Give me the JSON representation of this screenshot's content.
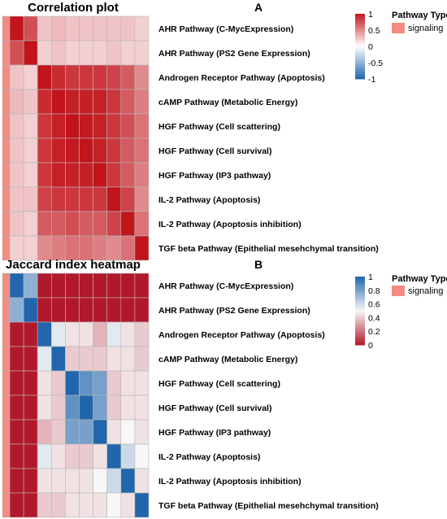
{
  "colors": {
    "pathway_type_signaling": "#F28B82",
    "cell_border": "#B8B8B8",
    "corr_scale": [
      "#2166AC",
      "#FFFFFF",
      "#C2141B"
    ],
    "jaccard_scale": [
      "#B2182B",
      "#F7F7F7",
      "#2166AC"
    ]
  },
  "chart_data": [
    {
      "type": "heatmap",
      "title": "Correlation plot",
      "panel_label": "A",
      "rows": [
        "AHR Pathway (C-MycExpression)",
        "AHR Pathway (PS2 Gene Expression)",
        "Androgen Receptor Pathway (Apoptosis)",
        "cAMP Pathway (Metabolic Energy)",
        "HGF Pathway (Cell scattering)",
        "HGF Pathway (Cell survival)",
        "HGF Pathway (IP3 pathway)",
        "IL-2 Pathway (Apoptosis)",
        "IL-2 Pathway (Apoptosis inhibition)",
        "TGF beta Pathway (Epithelial mesehchymal transition)"
      ],
      "values": [
        [
          1.0,
          0.75,
          0.25,
          0.3,
          0.25,
          0.25,
          0.25,
          0.25,
          0.25,
          0.2
        ],
        [
          0.75,
          1.0,
          0.2,
          0.25,
          0.2,
          0.2,
          0.2,
          0.25,
          0.2,
          0.2
        ],
        [
          0.25,
          0.2,
          1.0,
          0.9,
          0.85,
          0.85,
          0.85,
          0.8,
          0.7,
          0.5
        ],
        [
          0.3,
          0.25,
          0.9,
          1.0,
          0.95,
          0.95,
          0.95,
          0.85,
          0.7,
          0.55
        ],
        [
          0.25,
          0.2,
          0.85,
          0.95,
          1.0,
          0.98,
          0.95,
          0.85,
          0.75,
          0.6
        ],
        [
          0.25,
          0.2,
          0.85,
          0.95,
          0.98,
          1.0,
          0.95,
          0.85,
          0.7,
          0.6
        ],
        [
          0.25,
          0.2,
          0.85,
          0.95,
          0.95,
          0.95,
          1.0,
          0.85,
          0.7,
          0.55
        ],
        [
          0.25,
          0.25,
          0.8,
          0.85,
          0.85,
          0.85,
          0.85,
          1.0,
          0.8,
          0.5
        ],
        [
          0.25,
          0.2,
          0.7,
          0.7,
          0.75,
          0.7,
          0.7,
          0.8,
          1.0,
          0.6
        ],
        [
          0.2,
          0.2,
          0.5,
          0.55,
          0.6,
          0.6,
          0.55,
          0.5,
          0.6,
          1.0
        ]
      ],
      "annotation": {
        "title": "Pathway Type",
        "legend_item": "signaling",
        "row_values": [
          "signaling",
          "signaling",
          "signaling",
          "signaling",
          "signaling",
          "signaling",
          "signaling",
          "signaling",
          "signaling",
          "signaling"
        ]
      },
      "colorbar": {
        "range": [
          -1,
          1
        ],
        "ticks": [
          "1",
          "0.5",
          "0",
          "-0.5",
          "-1"
        ],
        "tick_values": [
          1,
          0.5,
          0,
          -0.5,
          -1
        ]
      }
    },
    {
      "type": "heatmap",
      "title": "Jaccard index heatmap",
      "panel_label": "B",
      "rows": [
        "AHR Pathway (C-MycExpression)",
        "AHR Pathway (PS2 Gene Expression)",
        "Androgen Receptor Pathway (Apoptosis)",
        "cAMP Pathway (Metabolic Energy)",
        "HGF Pathway (Cell scattering)",
        "HGF Pathway (Cell survival)",
        "HGF Pathway (IP3 pathway)",
        "IL-2 Pathway (Apoptosis)",
        "IL-2 Pathway (Apoptosis inhibition)",
        "TGF beta Pathway (Epithelial mesehchymal transition)"
      ],
      "values": [
        [
          1.0,
          0.75,
          0.0,
          0.0,
          0.0,
          0.0,
          0.0,
          0.0,
          0.0,
          0.0
        ],
        [
          0.75,
          1.0,
          0.0,
          0.0,
          0.0,
          0.0,
          0.0,
          0.0,
          0.0,
          0.0
        ],
        [
          0.0,
          0.0,
          1.0,
          0.55,
          0.45,
          0.45,
          0.35,
          0.55,
          0.45,
          0.4
        ],
        [
          0.0,
          0.0,
          0.55,
          1.0,
          0.4,
          0.4,
          0.4,
          0.45,
          0.45,
          0.4
        ],
        [
          0.0,
          0.0,
          0.45,
          0.4,
          1.0,
          0.85,
          0.8,
          0.4,
          0.45,
          0.45
        ],
        [
          0.0,
          0.0,
          0.45,
          0.4,
          0.85,
          1.0,
          0.8,
          0.4,
          0.45,
          0.45
        ],
        [
          0.0,
          0.0,
          0.35,
          0.4,
          0.8,
          0.8,
          1.0,
          0.45,
          0.5,
          0.45
        ],
        [
          0.0,
          0.0,
          0.55,
          0.45,
          0.4,
          0.4,
          0.45,
          1.0,
          0.6,
          0.5
        ],
        [
          0.0,
          0.0,
          0.45,
          0.45,
          0.45,
          0.45,
          0.5,
          0.6,
          1.0,
          0.45
        ],
        [
          0.0,
          0.0,
          0.4,
          0.4,
          0.45,
          0.45,
          0.45,
          0.5,
          0.45,
          1.0
        ]
      ],
      "annotation": {
        "title": "Pathway Type",
        "legend_item": "signaling",
        "row_values": [
          "signaling",
          "signaling",
          "signaling",
          "signaling",
          "signaling",
          "signaling",
          "signaling",
          "signaling",
          "signaling",
          "signaling"
        ]
      },
      "colorbar": {
        "range": [
          0,
          1
        ],
        "ticks": [
          "1",
          "0.8",
          "0.6",
          "0.4",
          "0.2",
          "0"
        ],
        "tick_values": [
          1,
          0.8,
          0.6,
          0.4,
          0.2,
          0
        ]
      }
    }
  ]
}
